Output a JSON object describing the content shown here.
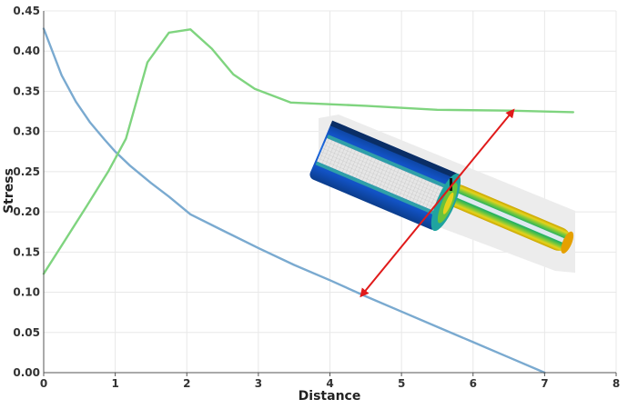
{
  "chart_data": {
    "type": "line",
    "xlabel": "Distance",
    "ylabel": "Stress",
    "xlim": [
      0,
      8
    ],
    "ylim": [
      0,
      0.45
    ],
    "xticks": [
      "0",
      "1",
      "2",
      "3",
      "4",
      "5",
      "6",
      "7",
      "8"
    ],
    "yticks": [
      "0.00",
      "0.05",
      "0.10",
      "0.15",
      "0.20",
      "0.25",
      "0.30",
      "0.35",
      "0.40",
      "0.45"
    ],
    "grid": true,
    "legend": "none",
    "series": [
      {
        "color": "#7aaad0",
        "x": [
          0,
          0.25,
          0.45,
          0.65,
          0.85,
          1.0,
          1.2,
          1.5,
          1.75,
          2.05,
          2.5,
          3.0,
          3.5,
          4.0,
          4.5,
          5.0,
          5.5,
          6.0,
          6.5,
          7.0
        ],
        "y": [
          0.428,
          0.37,
          0.337,
          0.311,
          0.29,
          0.275,
          0.258,
          0.236,
          0.219,
          0.197,
          0.177,
          0.155,
          0.134,
          0.115,
          0.095,
          0.076,
          0.057,
          0.038,
          0.019,
          0.0
        ]
      },
      {
        "color": "#7fd47f",
        "x": [
          0,
          0.3,
          0.6,
          0.9,
          1.15,
          1.45,
          1.75,
          2.05,
          2.35,
          2.65,
          2.95,
          3.45,
          4.5,
          5.5,
          6.5,
          7.4
        ],
        "y": [
          0.123,
          0.165,
          0.207,
          0.25,
          0.291,
          0.386,
          0.423,
          0.427,
          0.403,
          0.371,
          0.353,
          0.336,
          0.332,
          0.327,
          0.326,
          0.324
        ]
      }
    ],
    "annotation_arrow": {
      "color": "#e01a1a",
      "from": [
        4.45,
        0.097
      ],
      "to": [
        6.55,
        0.325
      ]
    }
  }
}
